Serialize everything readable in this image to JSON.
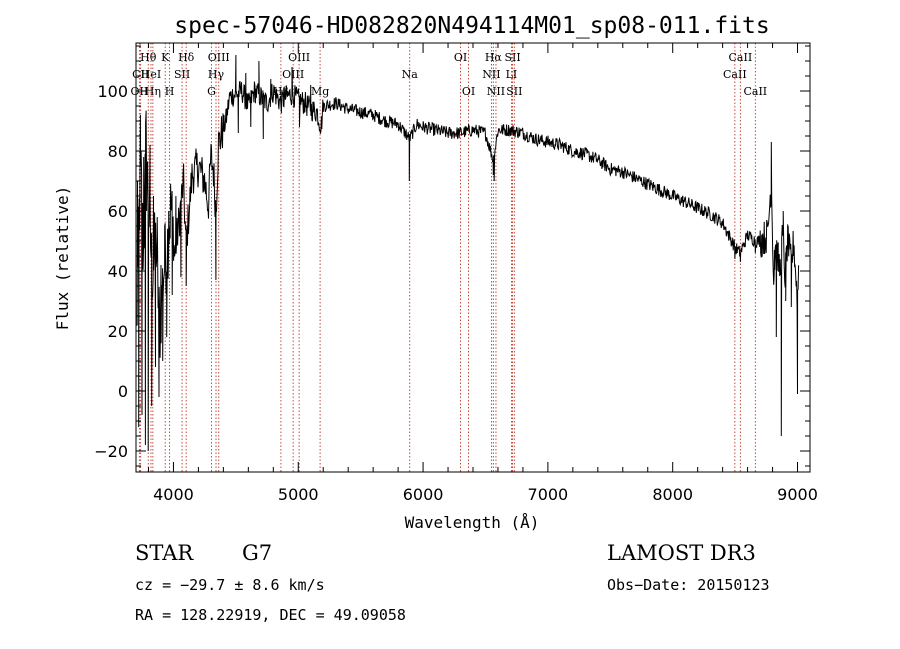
{
  "chart_data": {
    "type": "line",
    "title": "spec-57046-HD082820N494114M01_sp08-011.fits",
    "xlabel": "Wavelength (Å)",
    "ylabel": "Flux (relative)",
    "xlim": [
      3700,
      9100
    ],
    "ylim": [
      -27,
      116
    ],
    "xticks": [
      4000,
      5000,
      6000,
      7000,
      8000,
      9000
    ],
    "yticks": [
      -20,
      0,
      20,
      40,
      60,
      80,
      100
    ],
    "xtick_labels": [
      "4000",
      "5000",
      "6000",
      "7000",
      "8000",
      "9000"
    ],
    "ytick_labels": [
      "−20",
      "0",
      "20",
      "40",
      "60",
      "80",
      "100"
    ],
    "series": [
      {
        "name": "flux",
        "anchors": [
          [
            3700,
            5
          ],
          [
            3720,
            55
          ],
          [
            3740,
            72
          ],
          [
            3760,
            45
          ],
          [
            3780,
            85
          ],
          [
            3800,
            62
          ],
          [
            3830,
            40
          ],
          [
            3860,
            50
          ],
          [
            3890,
            20
          ],
          [
            3920,
            40
          ],
          [
            3950,
            48
          ],
          [
            3980,
            62
          ],
          [
            4010,
            45
          ],
          [
            4040,
            55
          ],
          [
            4080,
            70
          ],
          [
            4100,
            48
          ],
          [
            4150,
            72
          ],
          [
            4200,
            75
          ],
          [
            4250,
            70
          ],
          [
            4280,
            62
          ],
          [
            4300,
            78
          ],
          [
            4320,
            74
          ],
          [
            4340,
            60
          ],
          [
            4360,
            82
          ],
          [
            4380,
            85
          ],
          [
            4420,
            90
          ],
          [
            4450,
            98
          ],
          [
            4500,
            99
          ],
          [
            4550,
            100
          ],
          [
            4600,
            95
          ],
          [
            4650,
            100
          ],
          [
            4700,
            98
          ],
          [
            4750,
            96
          ],
          [
            4800,
            100
          ],
          [
            4860,
            96
          ],
          [
            4900,
            98
          ],
          [
            4950,
            99
          ],
          [
            5000,
            97
          ],
          [
            5050,
            96
          ],
          [
            5100,
            94
          ],
          [
            5150,
            93
          ],
          [
            5183,
            88
          ],
          [
            5200,
            95
          ],
          [
            5300,
            96
          ],
          [
            5400,
            94
          ],
          [
            5500,
            93
          ],
          [
            5600,
            92
          ],
          [
            5700,
            90
          ],
          [
            5800,
            89
          ],
          [
            5893,
            84
          ],
          [
            5950,
            89
          ],
          [
            6000,
            88
          ],
          [
            6100,
            87
          ],
          [
            6200,
            86
          ],
          [
            6300,
            86
          ],
          [
            6400,
            87
          ],
          [
            6500,
            86
          ],
          [
            6563,
            77
          ],
          [
            6600,
            87
          ],
          [
            6700,
            87
          ],
          [
            6800,
            86
          ],
          [
            6900,
            84
          ],
          [
            7000,
            83
          ],
          [
            7100,
            82
          ],
          [
            7200,
            80
          ],
          [
            7300,
            79
          ],
          [
            7400,
            77
          ],
          [
            7500,
            74
          ],
          [
            7600,
            73
          ],
          [
            7700,
            71
          ],
          [
            7800,
            69
          ],
          [
            7900,
            67
          ],
          [
            8000,
            65
          ],
          [
            8100,
            63
          ],
          [
            8200,
            61
          ],
          [
            8300,
            59
          ],
          [
            8400,
            56
          ],
          [
            8498,
            48
          ],
          [
            8542,
            46
          ],
          [
            8600,
            52
          ],
          [
            8662,
            50
          ],
          [
            8700,
            50
          ],
          [
            8760,
            52
          ],
          [
            8790,
            70
          ],
          [
            8810,
            35
          ],
          [
            8820,
            48
          ],
          [
            8840,
            45
          ],
          [
            8860,
            40
          ],
          [
            8880,
            52
          ],
          [
            8900,
            38
          ],
          [
            8920,
            50
          ],
          [
            8950,
            42
          ],
          [
            8970,
            50
          ],
          [
            9000,
            30
          ],
          [
            9010,
            42
          ]
        ],
        "spikes": [
          [
            3712,
            70
          ],
          [
            3722,
            -12
          ],
          [
            3735,
            92
          ],
          [
            3748,
            -8
          ],
          [
            3762,
            78
          ],
          [
            3775,
            -18
          ],
          [
            3785,
            60
          ],
          [
            3798,
            -20
          ],
          [
            3812,
            82
          ],
          [
            3826,
            -5
          ],
          [
            3840,
            65
          ],
          [
            3856,
            8
          ],
          [
            3870,
            58
          ],
          [
            3884,
            -2
          ],
          [
            3900,
            42
          ],
          [
            3914,
            10
          ],
          [
            3930,
            55
          ],
          [
            3946,
            18
          ],
          [
            3962,
            60
          ],
          [
            3990,
            32
          ],
          [
            4020,
            65
          ],
          [
            4060,
            38
          ],
          [
            4102,
            35
          ],
          [
            4130,
            62
          ],
          [
            4340,
            37
          ],
          [
            4500,
            112
          ],
          [
            4520,
            86
          ],
          [
            4580,
            106
          ],
          [
            4620,
            88
          ],
          [
            4685,
            110
          ],
          [
            4720,
            84
          ],
          [
            4780,
            104
          ],
          [
            4950,
            108
          ],
          [
            5010,
            88
          ],
          [
            5100,
            102
          ],
          [
            5890,
            70
          ],
          [
            6563,
            72
          ],
          [
            6570,
            70
          ],
          [
            8498,
            44
          ],
          [
            8542,
            43
          ],
          [
            8662,
            46
          ],
          [
            8790,
            83
          ],
          [
            8815,
            47
          ],
          [
            8830,
            18
          ],
          [
            8845,
            45
          ],
          [
            8870,
            -15
          ],
          [
            8885,
            60
          ],
          [
            8905,
            30
          ],
          [
            8925,
            55
          ],
          [
            8950,
            28
          ],
          [
            9000,
            -1
          ]
        ]
      }
    ],
    "lines": [
      {
        "name": "CII",
        "wavelength": 3737,
        "label": "CII",
        "row": 1
      },
      {
        "name": "Hθ",
        "wavelength": 3798,
        "label": "Hθ",
        "row": 0
      },
      {
        "name": "OII",
        "wavelength": 3727,
        "label": "OII",
        "row": 2
      },
      {
        "name": "HeI",
        "wavelength": 3820,
        "label": "HeI",
        "row": 1
      },
      {
        "name": "Hη",
        "wavelength": 3835,
        "label": "Hη",
        "row": 2
      },
      {
        "name": "K",
        "wavelength": 3934,
        "label": "K",
        "row": 0
      },
      {
        "name": "H",
        "wavelength": 3969,
        "label": "H",
        "row": 2
      },
      {
        "name": "SII",
        "wavelength": 4069,
        "label": "SII",
        "row": 1
      },
      {
        "name": "Hδ",
        "wavelength": 4102,
        "label": "Hδ",
        "row": 0
      },
      {
        "name": "OIII-a",
        "wavelength": 4363,
        "label": "OIII",
        "row": 0
      },
      {
        "name": "Hγ",
        "wavelength": 4341,
        "label": "Hγ",
        "row": 1
      },
      {
        "name": "G",
        "wavelength": 4305,
        "label": "G",
        "row": 2
      },
      {
        "name": "Hβ",
        "wavelength": 4861,
        "label": "Hβ",
        "row": 2
      },
      {
        "name": "OIII-b",
        "wavelength": 5007,
        "label": "OIII",
        "row": 0
      },
      {
        "name": "OIII-c",
        "wavelength": 4959,
        "label": "OIII",
        "row": 1
      },
      {
        "name": "Mg",
        "wavelength": 5175,
        "label": "Mg",
        "row": 2
      },
      {
        "name": "Na",
        "wavelength": 5893,
        "label": "Na",
        "row": 1
      },
      {
        "name": "OI-a",
        "wavelength": 6300,
        "label": "OI",
        "row": 0
      },
      {
        "name": "OI-b",
        "wavelength": 6364,
        "label": "OI",
        "row": 2
      },
      {
        "name": "Hα",
        "wavelength": 6563,
        "label": "Hα",
        "row": 0
      },
      {
        "name": "NII-a",
        "wavelength": 6548,
        "label": "NII",
        "row": 1
      },
      {
        "name": "NII-b",
        "wavelength": 6584,
        "label": "NII",
        "row": 2
      },
      {
        "name": "SII-a",
        "wavelength": 6717,
        "label": "SII",
        "row": 0
      },
      {
        "name": "LI",
        "wavelength": 6708,
        "label": "LI",
        "row": 1
      },
      {
        "name": "SII-b",
        "wavelength": 6731,
        "label": "SII",
        "row": 2
      },
      {
        "name": "CaII-a",
        "wavelength": 8498,
        "label": "CaII",
        "row": 1
      },
      {
        "name": "CaII-b",
        "wavelength": 8542,
        "label": "CaII",
        "row": 0
      },
      {
        "name": "CaII-c",
        "wavelength": 8662,
        "label": "CaII",
        "row": 2
      }
    ]
  },
  "info": {
    "object_type": "STAR",
    "subclass": "G7",
    "survey": "LAMOST DR3",
    "cz": "cz = −29.7 ± 8.6 km/s",
    "obs_date": "Obs−Date: 20150123",
    "coords": "RA = 128.22919, DEC =  49.09058"
  }
}
